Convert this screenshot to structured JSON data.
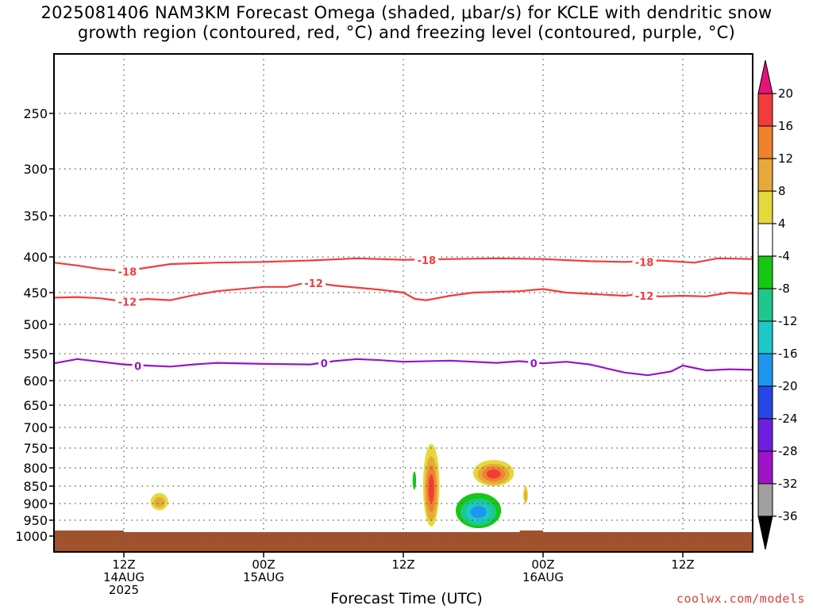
{
  "title": {
    "line1": "2025081406 NAM3KM Forecast Omega (shaded, μbar/s) for KCLE with dendritic snow",
    "line2": "growth region (contoured, red, °C) and freezing level (contoured, purple, °C)"
  },
  "xlabel": "Forecast Time (UTC)",
  "credit": "coolwx.com/models",
  "chart_data": {
    "type": "heatmap",
    "title": "2025081406 NAM3KM Forecast Omega (shaded, μbar/s) for KCLE with dendritic snow growth region (contoured, red, °C) and freezing level (contoured, purple, °C)",
    "xlabel": "Forecast Time (UTC)",
    "ylabel": "",
    "y_axis": {
      "scale": "pressure (log)",
      "reversed": true,
      "ticks": [
        250,
        300,
        350,
        400,
        450,
        500,
        550,
        600,
        650,
        700,
        750,
        800,
        850,
        900,
        950,
        1000
      ]
    },
    "x_axis": {
      "range_hours": [
        6,
        66
      ],
      "ticks": [
        {
          "hour": 12,
          "label": [
            "12Z",
            "14AUG",
            "2025"
          ]
        },
        {
          "hour": 24,
          "label": [
            "00Z",
            "15AUG"
          ]
        },
        {
          "hour": 36,
          "label": [
            "12Z"
          ]
        },
        {
          "hour": 48,
          "label": [
            "00Z",
            "16AUG"
          ]
        },
        {
          "hour": 60,
          "label": [
            "12Z"
          ]
        }
      ]
    },
    "grid": true,
    "colorbar": {
      "label_values": [
        "20",
        "16",
        "12",
        "8",
        "4",
        "-4",
        "-8",
        "-12",
        "-16",
        "-20",
        "-24",
        "-28",
        "-32",
        "-36"
      ],
      "bands": [
        {
          "from": 16,
          "to": 20,
          "color": "#f23c3c"
        },
        {
          "from": 12,
          "to": 16,
          "color": "#f0822c"
        },
        {
          "from": 8,
          "to": 12,
          "color": "#e6a93a"
        },
        {
          "from": 4,
          "to": 8,
          "color": "#e5d83a"
        },
        {
          "from": -4,
          "to": 4,
          "color": "#ffffff"
        },
        {
          "from": -8,
          "to": -4,
          "color": "#14c814"
        },
        {
          "from": -12,
          "to": -8,
          "color": "#1ec88c"
        },
        {
          "from": -16,
          "to": -12,
          "color": "#1ec8c8"
        },
        {
          "from": -20,
          "to": -16,
          "color": "#1e96f0"
        },
        {
          "from": -24,
          "to": -20,
          "color": "#2846e6"
        },
        {
          "from": -28,
          "to": -24,
          "color": "#6e1ee0"
        },
        {
          "from": -32,
          "to": -28,
          "color": "#a014c8"
        },
        {
          "from": -36,
          "to": -32,
          "color": "#a0a0a0"
        }
      ],
      "top_arrow_color": "#e6147a",
      "bottom_arrow_color": "#000000"
    },
    "contours": [
      {
        "label": "-18",
        "color": "#f23c3c",
        "points": [
          [
            6,
            408
          ],
          [
            8,
            412
          ],
          [
            10,
            417
          ],
          [
            12,
            420
          ],
          [
            14,
            415
          ],
          [
            16,
            410
          ],
          [
            20,
            408
          ],
          [
            24,
            407
          ],
          [
            28,
            405
          ],
          [
            32,
            402
          ],
          [
            36,
            404
          ],
          [
            40,
            403
          ],
          [
            44,
            402
          ],
          [
            48,
            403
          ],
          [
            52,
            406
          ],
          [
            55,
            407
          ],
          [
            58,
            405
          ],
          [
            61,
            408
          ],
          [
            63,
            402
          ],
          [
            66,
            403
          ]
        ],
        "label_hours": [
          12.3,
          38,
          56.7
        ]
      },
      {
        "label": "-12",
        "color": "#f23c3c",
        "points": [
          [
            6,
            458
          ],
          [
            8,
            457
          ],
          [
            10,
            459
          ],
          [
            12,
            464
          ],
          [
            14,
            460
          ],
          [
            16,
            462
          ],
          [
            18,
            454
          ],
          [
            20,
            448
          ],
          [
            24,
            442
          ],
          [
            26,
            442
          ],
          [
            28,
            435
          ],
          [
            30,
            440
          ],
          [
            34,
            446
          ],
          [
            36,
            450
          ],
          [
            37,
            460
          ],
          [
            38,
            462
          ],
          [
            40,
            455
          ],
          [
            42,
            450
          ],
          [
            46,
            448
          ],
          [
            48,
            445
          ],
          [
            50,
            450
          ],
          [
            52,
            452
          ],
          [
            55,
            455
          ],
          [
            56,
            453
          ],
          [
            58,
            456
          ],
          [
            60,
            455
          ],
          [
            62,
            456
          ],
          [
            64,
            450
          ],
          [
            66,
            452
          ]
        ],
        "label_hours": [
          12.3,
          28.3,
          56.7
        ]
      },
      {
        "label": "0",
        "color": "#9416c8",
        "points": [
          [
            6,
            568
          ],
          [
            8,
            560
          ],
          [
            10,
            565
          ],
          [
            12,
            570
          ],
          [
            14,
            572
          ],
          [
            16,
            574
          ],
          [
            18,
            570
          ],
          [
            20,
            567
          ],
          [
            24,
            569
          ],
          [
            28,
            570
          ],
          [
            30,
            564
          ],
          [
            32,
            560
          ],
          [
            34,
            562
          ],
          [
            36,
            565
          ],
          [
            40,
            563
          ],
          [
            44,
            567
          ],
          [
            46,
            564
          ],
          [
            48,
            568
          ],
          [
            50,
            565
          ],
          [
            52,
            570
          ],
          [
            55,
            585
          ],
          [
            57,
            590
          ],
          [
            59,
            583
          ],
          [
            60,
            572
          ],
          [
            62,
            581
          ],
          [
            64,
            579
          ],
          [
            66,
            580
          ]
        ],
        "label_hours": [
          13.2,
          29.2,
          47.2
        ]
      }
    ],
    "omega_features": [
      {
        "sign": "+",
        "max": 8,
        "hour_range": [
          14.3,
          15.8
        ],
        "pressure_range": [
          870,
          920
        ]
      },
      {
        "sign": "+",
        "max": 16,
        "hour_range": [
          37.7,
          39.1
        ],
        "pressure_range": [
          740,
          970
        ]
      },
      {
        "sign": "-",
        "min": -4,
        "hour_range": [
          36.8,
          37.1
        ],
        "pressure_range": [
          810,
          860
        ]
      },
      {
        "sign": "+",
        "max": 16,
        "hour_range": [
          42.0,
          45.5
        ],
        "pressure_range": [
          780,
          850
        ]
      },
      {
        "sign": "+",
        "max": 8,
        "hour_range": [
          46.3,
          46.7
        ],
        "pressure_range": [
          850,
          900
        ]
      },
      {
        "sign": "-",
        "min": -16,
        "hour_range": [
          40.5,
          44.4
        ],
        "pressure_range": [
          870,
          975
        ]
      }
    ]
  }
}
